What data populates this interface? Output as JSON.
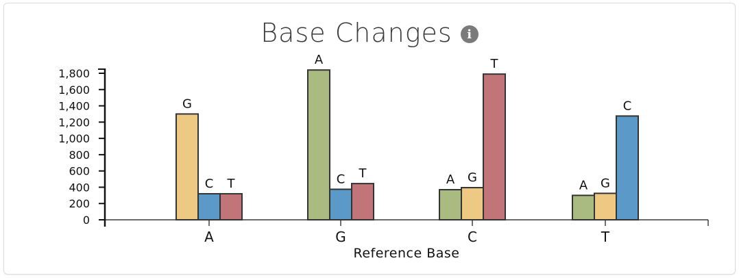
{
  "title": "Base Changes",
  "info_icon": "info-icon",
  "colors": {
    "A": "#a9bb81",
    "G": "#edc983",
    "C": "#5b9ac8",
    "T": "#c17578",
    "stroke": "#333333"
  },
  "chart_data": {
    "type": "bar",
    "xlabel": "Reference Base",
    "ylabel": "",
    "ylim": [
      0,
      1800
    ],
    "yticks": [
      0,
      200,
      400,
      600,
      800,
      1000,
      1200,
      1400,
      1600,
      1800
    ],
    "ytick_labels": [
      "0",
      "200",
      "400",
      "600",
      "800",
      "1,000",
      "1,200",
      "1,400",
      "1,600",
      "1,800"
    ],
    "categories": [
      "A",
      "G",
      "C",
      "T"
    ],
    "groups": [
      {
        "reference": "A",
        "bars": [
          {
            "base": "G",
            "value": 1300
          },
          {
            "base": "C",
            "value": 320
          },
          {
            "base": "T",
            "value": 320
          }
        ]
      },
      {
        "reference": "G",
        "bars": [
          {
            "base": "A",
            "value": 1840
          },
          {
            "base": "C",
            "value": 375
          },
          {
            "base": "T",
            "value": 445
          }
        ]
      },
      {
        "reference": "C",
        "bars": [
          {
            "base": "A",
            "value": 370
          },
          {
            "base": "G",
            "value": 395
          },
          {
            "base": "T",
            "value": 1790
          }
        ]
      },
      {
        "reference": "T",
        "bars": [
          {
            "base": "A",
            "value": 300
          },
          {
            "base": "G",
            "value": 325
          },
          {
            "base": "C",
            "value": 1275
          }
        ]
      }
    ],
    "grid": false,
    "legend": "none"
  }
}
